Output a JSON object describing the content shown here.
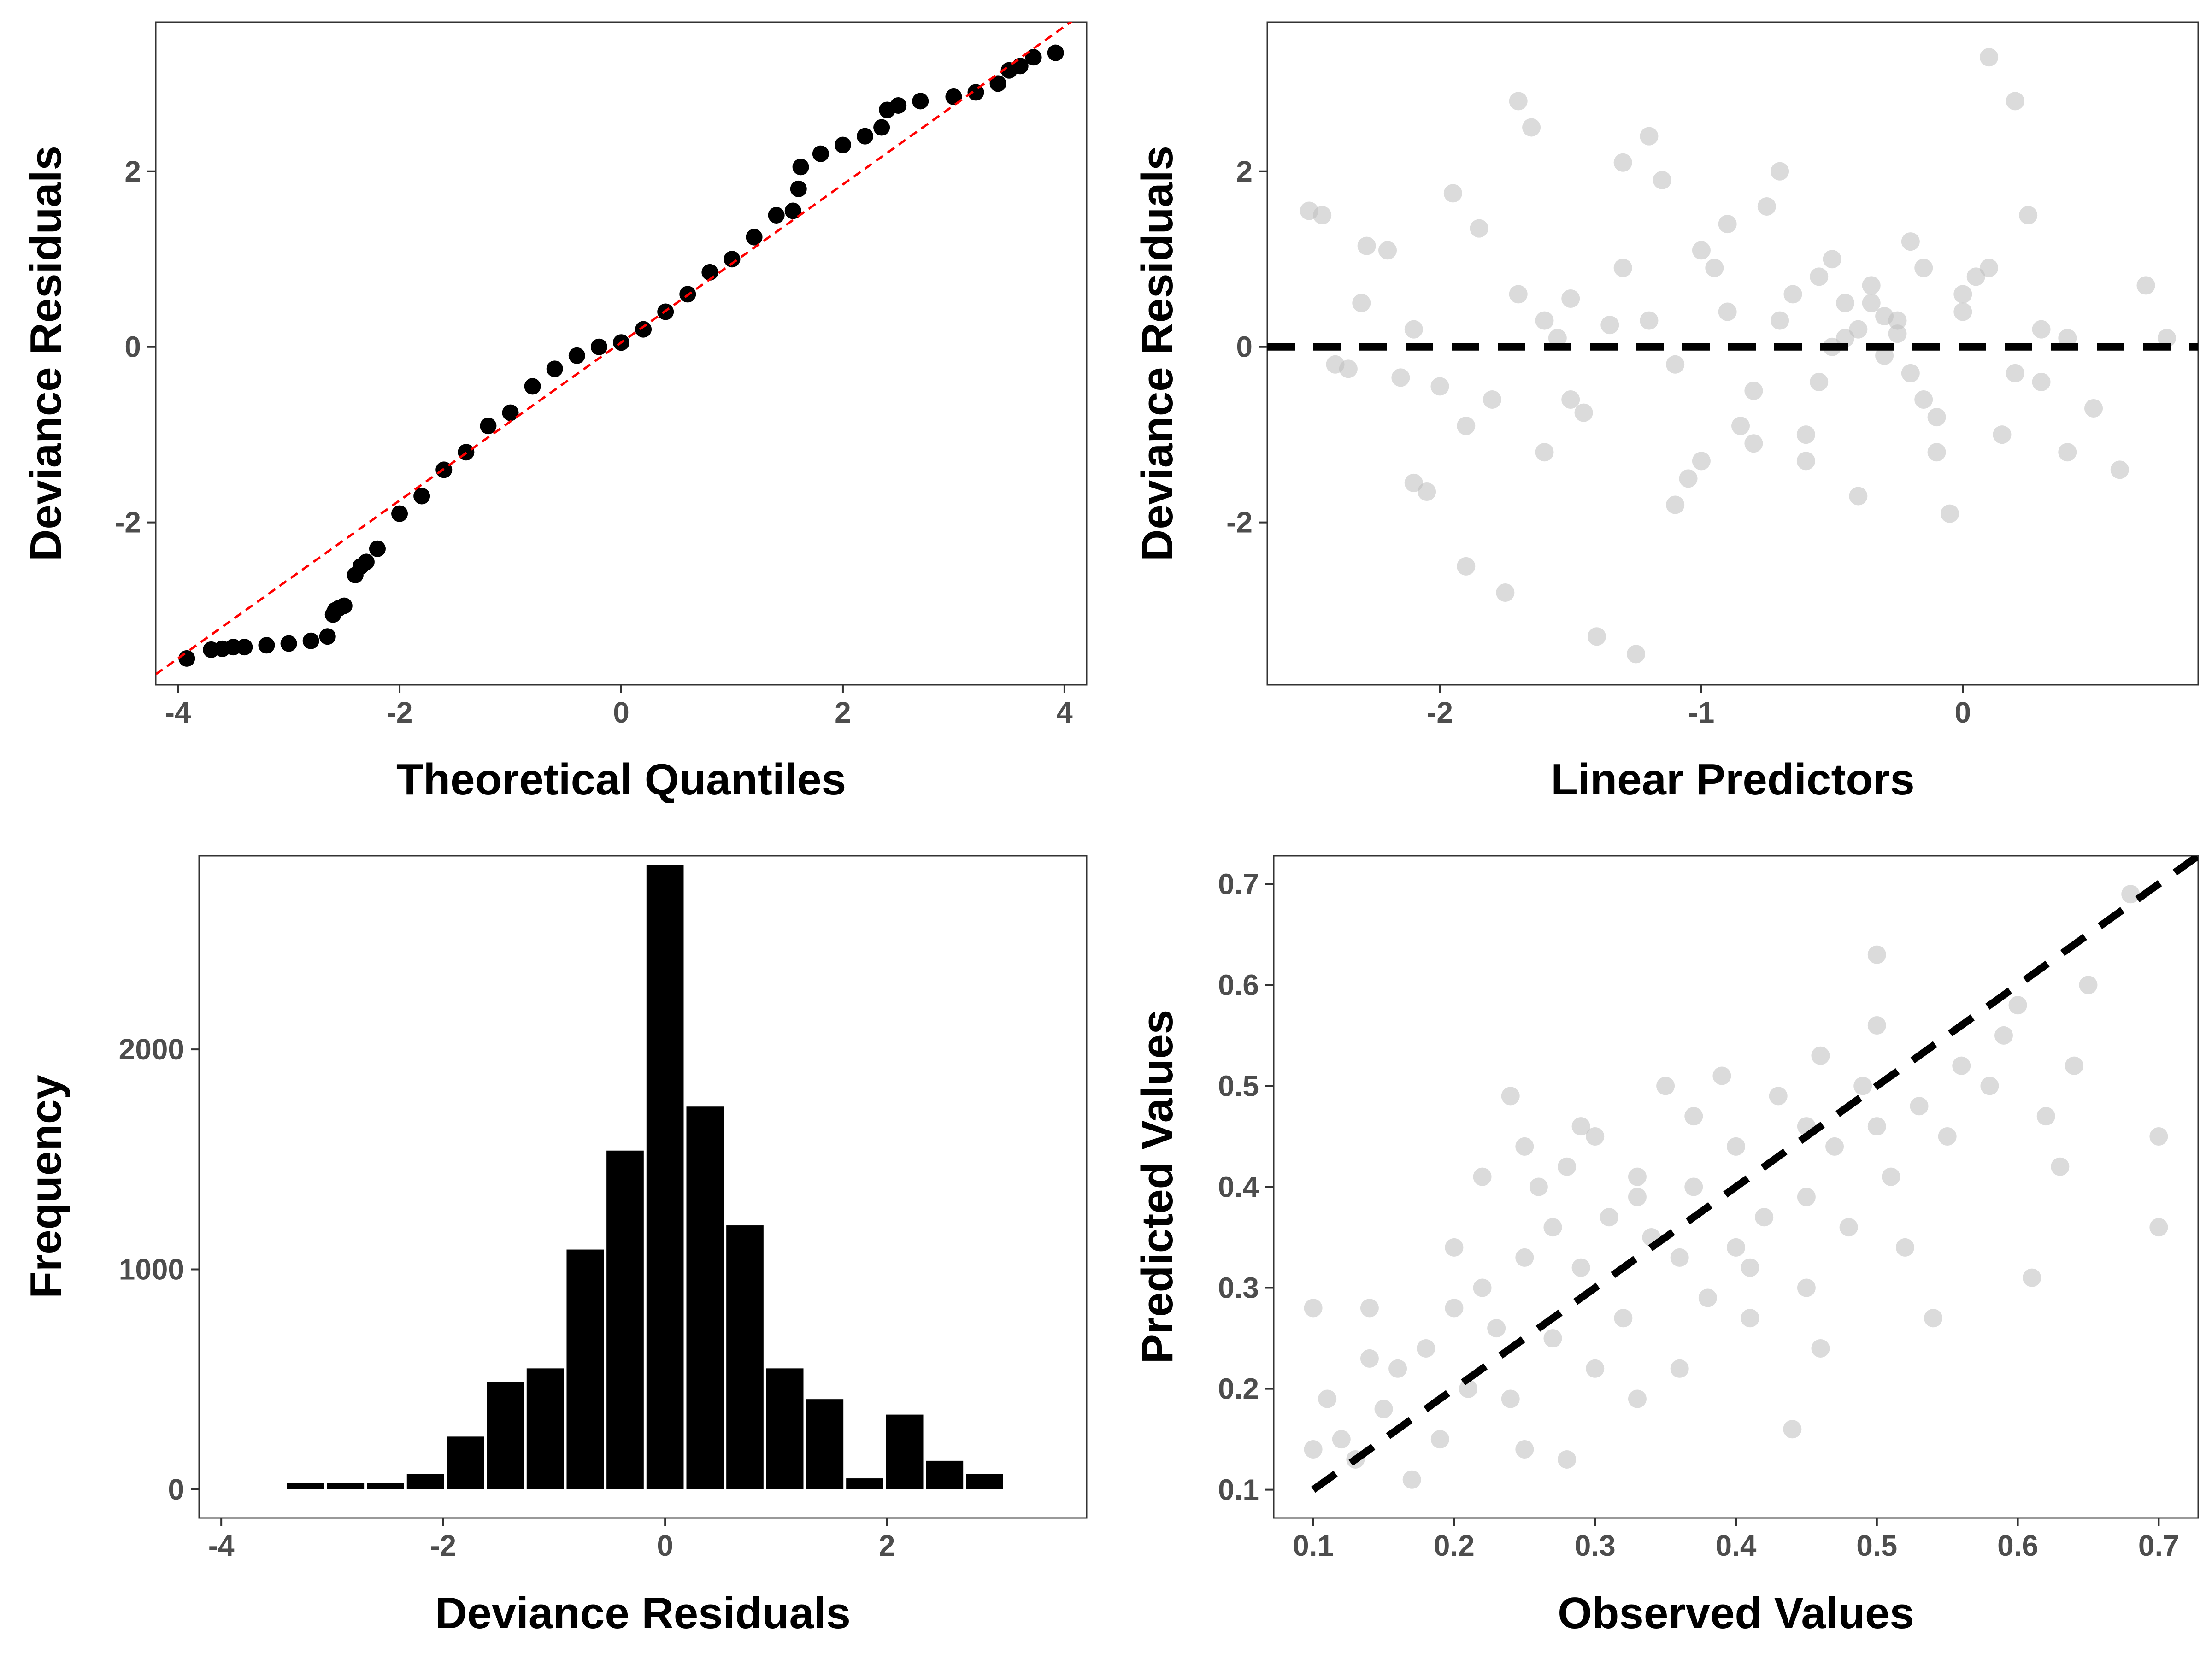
{
  "figure": {
    "colors": {
      "points_dark": "#000000",
      "points_light": "#bebebe",
      "ref_line_red": "#ff0000",
      "bars": "#000000"
    }
  },
  "chart_data": [
    {
      "id": "qq",
      "type": "scatter",
      "title": "",
      "xlabel": "Theoretical Quantiles",
      "ylabel": "Deviance Residuals",
      "xlim": [
        -4.2,
        4.2
      ],
      "ylim": [
        -3.85,
        3.7
      ],
      "xticks": [
        -4,
        -2,
        0,
        2,
        4
      ],
      "xtick_labels": [
        "-4",
        "-2",
        "0",
        "2",
        "4"
      ],
      "yticks": [
        -2,
        0,
        2
      ],
      "ytick_labels": [
        "-2",
        "0",
        "2"
      ],
      "grid": false,
      "reference_line": {
        "style": "dashed",
        "color": "#ff0000",
        "slope": 0.9,
        "intercept": 0.05
      },
      "series": [
        {
          "x": [
            -3.92,
            -3.7,
            -3.6,
            -3.5,
            -3.4,
            -3.2,
            -3.0,
            -2.8,
            -2.65,
            -2.6,
            -2.58,
            -2.55,
            -2.5,
            -2.4,
            -2.35,
            -2.3,
            -2.2,
            -2.0,
            -1.8,
            -1.6,
            -1.4,
            -1.2,
            -1.0,
            -0.8,
            -0.6,
            -0.4,
            -0.2,
            0.0,
            0.2,
            0.4,
            0.6,
            0.8,
            1.0,
            1.2,
            1.4,
            1.55,
            1.6,
            1.62,
            1.8,
            2.0,
            2.2,
            2.35,
            2.4,
            2.5,
            2.7,
            3.0,
            3.2,
            3.4,
            3.5,
            3.6,
            3.72,
            3.92
          ],
          "y": [
            -3.55,
            -3.45,
            -3.44,
            -3.42,
            -3.42,
            -3.4,
            -3.38,
            -3.35,
            -3.3,
            -3.05,
            -3.0,
            -2.98,
            -2.95,
            -2.6,
            -2.5,
            -2.45,
            -2.3,
            -1.9,
            -1.7,
            -1.4,
            -1.2,
            -0.9,
            -0.75,
            -0.45,
            -0.25,
            -0.1,
            0.0,
            0.05,
            0.2,
            0.4,
            0.6,
            0.85,
            1.0,
            1.25,
            1.5,
            1.55,
            1.8,
            2.05,
            2.2,
            2.3,
            2.4,
            2.5,
            2.7,
            2.75,
            2.8,
            2.85,
            2.9,
            3.0,
            3.15,
            3.2,
            3.3,
            3.35
          ]
        }
      ]
    },
    {
      "id": "resid-vs-linpred",
      "type": "scatter",
      "title": "",
      "xlabel": "Linear Predictors",
      "ylabel": "Deviance Residuals",
      "xlim": [
        -2.66,
        0.9
      ],
      "ylim": [
        -3.85,
        3.7
      ],
      "xticks": [
        -2,
        -1,
        0
      ],
      "xtick_labels": [
        "-2",
        "-1",
        "0"
      ],
      "yticks": [
        -2,
        0,
        2
      ],
      "ytick_labels": [
        "-2",
        "0",
        "2"
      ],
      "grid": false,
      "reference_line": {
        "style": "dashed",
        "color": "#000000",
        "y": 0
      },
      "series": [
        {
          "x": [
            -2.5,
            -2.45,
            -2.4,
            -2.35,
            -2.28,
            -2.2,
            -2.15,
            -2.1,
            -2.05,
            -2.0,
            -1.95,
            -1.9,
            -1.85,
            -1.8,
            -1.75,
            -1.7,
            -1.65,
            -1.6,
            -1.55,
            -1.5,
            -1.45,
            -1.4,
            -1.35,
            -1.3,
            -1.25,
            -1.2,
            -1.15,
            -1.1,
            -1.05,
            -1.0,
            -0.95,
            -0.9,
            -0.85,
            -0.8,
            -0.75,
            -0.7,
            -0.65,
            -0.6,
            -0.55,
            -0.5,
            -0.45,
            -0.4,
            -0.35,
            -0.3,
            -0.25,
            -0.2,
            -0.15,
            -0.1,
            -0.05,
            0.0,
            0.05,
            0.1,
            0.15,
            0.2,
            0.25,
            0.3,
            0.4,
            0.5,
            0.6,
            0.7,
            0.78,
            -1.6,
            -1.2,
            -0.8,
            -0.4,
            0.0,
            0.3,
            -2.1,
            -1.9,
            -1.3,
            -0.9,
            -0.5,
            -0.1,
            0.2,
            -1.7,
            -1.1,
            -0.6,
            -0.2,
            0.1,
            0.4,
            -2.3,
            -1.5,
            -1.0,
            -0.7,
            -0.3,
            -0.35,
            -0.25,
            -0.45,
            -0.15,
            -0.55
          ],
          "y": [
            1.55,
            1.5,
            -0.2,
            -0.25,
            1.15,
            1.1,
            -0.35,
            -1.55,
            -1.65,
            -0.45,
            1.75,
            -2.5,
            1.35,
            -0.6,
            -2.8,
            2.8,
            2.5,
            0.3,
            0.1,
            0.55,
            -0.75,
            -3.3,
            0.25,
            2.1,
            -3.5,
            2.4,
            1.9,
            -1.8,
            -1.5,
            1.1,
            0.9,
            0.4,
            -0.9,
            -1.1,
            1.6,
            2.0,
            0.6,
            -1.3,
            0.8,
            1.0,
            0.5,
            0.2,
            0.7,
            0.35,
            0.15,
            -0.3,
            -0.6,
            -1.2,
            -1.9,
            0.6,
            0.8,
            3.3,
            -1.0,
            2.8,
            1.5,
            0.2,
            0.1,
            -0.7,
            -1.4,
            0.7,
            0.1,
            -1.2,
            0.3,
            -0.5,
            -1.7,
            0.4,
            -0.4,
            0.2,
            -0.9,
            0.9,
            1.4,
            0.0,
            -0.8,
            -0.3,
            0.6,
            -0.2,
            -1.0,
            1.2,
            0.9,
            -1.2,
            0.5,
            -0.6,
            -1.3,
            0.3,
            -0.1,
            0.5,
            0.3,
            0.1,
            0.9,
            -0.4
          ]
        }
      ]
    },
    {
      "id": "hist",
      "type": "bar",
      "title": "",
      "xlabel": "Deviance Residuals",
      "ylabel": "Frequency",
      "xlim": [
        -4.2,
        3.8
      ],
      "ylim": [
        -130,
        2880
      ],
      "xticks": [
        -4,
        -2,
        0,
        2
      ],
      "xtick_labels": [
        "-4",
        "-2",
        "0",
        "2"
      ],
      "yticks": [
        0,
        1000,
        2000
      ],
      "ytick_labels": [
        "0",
        "1000",
        "2000"
      ],
      "grid": false,
      "bin_width": 0.36,
      "bin_centers": [
        -3.24,
        -2.88,
        -2.52,
        -2.16,
        -1.8,
        -1.44,
        -1.08,
        -0.72,
        -0.36,
        0.0,
        0.36,
        0.72,
        1.08,
        1.44,
        1.8,
        2.16,
        2.52,
        2.88
      ],
      "values": [
        30,
        30,
        30,
        70,
        240,
        490,
        550,
        1090,
        1540,
        2840,
        1740,
        1200,
        550,
        410,
        50,
        340,
        130,
        70
      ]
    },
    {
      "id": "obs-vs-pred",
      "type": "scatter",
      "title": "",
      "xlabel": "Observed Values",
      "ylabel": "Predicted Values",
      "xlim": [
        0.072,
        0.728
      ],
      "ylim": [
        0.072,
        0.728
      ],
      "xticks": [
        0.1,
        0.2,
        0.3,
        0.4,
        0.5,
        0.6,
        0.7
      ],
      "xtick_labels": [
        "0.1",
        "0.2",
        "0.3",
        "0.4",
        "0.5",
        "0.6",
        "0.7"
      ],
      "yticks": [
        0.1,
        0.2,
        0.3,
        0.4,
        0.5,
        0.6,
        0.7
      ],
      "ytick_labels": [
        "0.1",
        "0.2",
        "0.3",
        "0.4",
        "0.5",
        "0.6",
        "0.7"
      ],
      "grid": false,
      "reference_line": {
        "style": "dashed",
        "color": "#000000",
        "slope": 1,
        "intercept": 0,
        "from": 0.1,
        "to": 0.728
      },
      "series": [
        {
          "x": [
            0.1,
            0.1,
            0.11,
            0.12,
            0.13,
            0.14,
            0.14,
            0.15,
            0.16,
            0.17,
            0.18,
            0.19,
            0.2,
            0.2,
            0.21,
            0.22,
            0.22,
            0.23,
            0.24,
            0.24,
            0.25,
            0.25,
            0.26,
            0.27,
            0.27,
            0.28,
            0.28,
            0.29,
            0.3,
            0.3,
            0.31,
            0.32,
            0.33,
            0.33,
            0.34,
            0.35,
            0.36,
            0.36,
            0.37,
            0.38,
            0.39,
            0.4,
            0.4,
            0.41,
            0.42,
            0.43,
            0.44,
            0.45,
            0.45,
            0.46,
            0.46,
            0.47,
            0.48,
            0.49,
            0.5,
            0.5,
            0.51,
            0.52,
            0.53,
            0.54,
            0.55,
            0.56,
            0.58,
            0.59,
            0.6,
            0.61,
            0.62,
            0.63,
            0.64,
            0.65,
            0.68,
            0.7,
            0.7,
            0.5,
            0.45,
            0.41,
            0.37,
            0.33,
            0.25,
            0.29
          ],
          "y": [
            0.28,
            0.14,
            0.19,
            0.15,
            0.13,
            0.28,
            0.23,
            0.18,
            0.22,
            0.11,
            0.24,
            0.15,
            0.34,
            0.28,
            0.2,
            0.41,
            0.3,
            0.26,
            0.19,
            0.49,
            0.33,
            0.14,
            0.4,
            0.36,
            0.25,
            0.42,
            0.13,
            0.32,
            0.45,
            0.22,
            0.37,
            0.27,
            0.41,
            0.19,
            0.35,
            0.5,
            0.33,
            0.22,
            0.4,
            0.29,
            0.51,
            0.44,
            0.34,
            0.27,
            0.37,
            0.49,
            0.16,
            0.39,
            0.3,
            0.53,
            0.24,
            0.44,
            0.36,
            0.5,
            0.63,
            0.46,
            0.41,
            0.34,
            0.48,
            0.27,
            0.45,
            0.52,
            0.5,
            0.55,
            0.58,
            0.31,
            0.47,
            0.42,
            0.52,
            0.6,
            0.69,
            0.45,
            0.36,
            0.56,
            0.46,
            0.32,
            0.47,
            0.39,
            0.44,
            0.46
          ]
        }
      ]
    }
  ]
}
